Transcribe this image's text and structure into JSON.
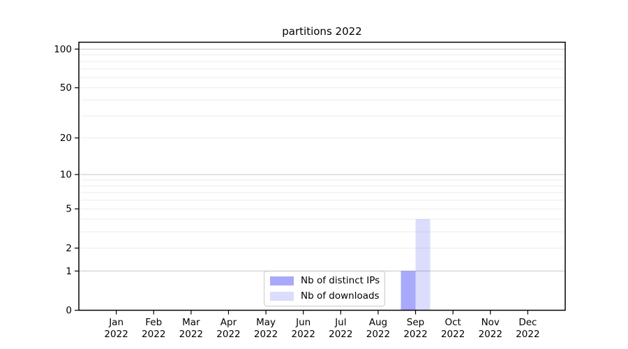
{
  "chart_data": {
    "type": "bar",
    "title": "partitions 2022",
    "categories": [
      "Jan 2022",
      "Feb 2022",
      "Mar 2022",
      "Apr 2022",
      "May 2022",
      "Jun 2022",
      "Jul 2022",
      "Aug 2022",
      "Sep 2022",
      "Oct 2022",
      "Nov 2022",
      "Dec 2022"
    ],
    "series": [
      {
        "name": "Nb of distinct IPs",
        "color": "rgba(40,40,245,0.40)",
        "values": [
          0,
          0,
          0,
          0,
          0,
          0,
          0,
          0,
          1,
          0,
          0,
          0
        ]
      },
      {
        "name": "Nb of downloads",
        "color": "rgba(40,40,245,0.16)",
        "values": [
          0,
          0,
          0,
          0,
          0,
          0,
          0,
          0,
          4,
          0,
          0,
          0
        ]
      }
    ],
    "y_scale": "log10(1+y)",
    "y_ticks": [
      0,
      1,
      2,
      5,
      10,
      20,
      50,
      100
    ],
    "y_major_gridlines": [
      1,
      10,
      100
    ],
    "y_minor_gridlines": [
      2,
      3,
      4,
      5,
      6,
      7,
      8,
      9,
      20,
      30,
      40,
      50,
      60,
      70,
      80,
      90
    ],
    "ylim": [
      0,
      113
    ],
    "grid": "on",
    "legend_position": "lower center",
    "colors": {
      "bar_distinct_ips_hex": "#aaaaf8",
      "bar_downloads_hex": "#dcdcfa",
      "grid_major": "#c5c5c5",
      "grid_minor": "#ebebeb",
      "axis": "#000000"
    }
  }
}
